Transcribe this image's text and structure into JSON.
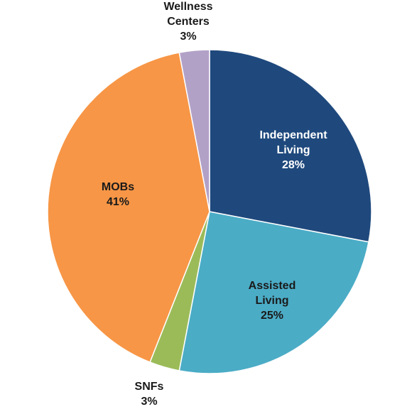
{
  "chart_data": {
    "type": "pie",
    "start_angle_deg": 0,
    "direction": "clockwise",
    "slices": [
      {
        "label_lines": [
          "Independent",
          "Living"
        ],
        "value_label": "28%",
        "value": 28,
        "color": "#1F497D",
        "label_color": "#ffffff",
        "label_placement": "inside"
      },
      {
        "label_lines": [
          "Assisted",
          "Living"
        ],
        "value_label": "25%",
        "value": 25,
        "color": "#4BACC6",
        "label_color": "#1a1a1a",
        "label_placement": "inside"
      },
      {
        "label_lines": [
          "SNFs"
        ],
        "value_label": "3%",
        "value": 3,
        "color": "#9BBB59",
        "label_color": "#1a1a1a",
        "label_placement": "outside"
      },
      {
        "label_lines": [
          "MOBs"
        ],
        "value_label": "41%",
        "value": 41,
        "color": "#F79646",
        "label_color": "#1a1a1a",
        "label_placement": "inside"
      },
      {
        "label_lines": [
          "Wellness",
          "Centers"
        ],
        "value_label": "3%",
        "value": 3,
        "color": "#B2A1C7",
        "label_color": "#1a1a1a",
        "label_placement": "outside"
      }
    ],
    "legend": "none",
    "title": ""
  }
}
